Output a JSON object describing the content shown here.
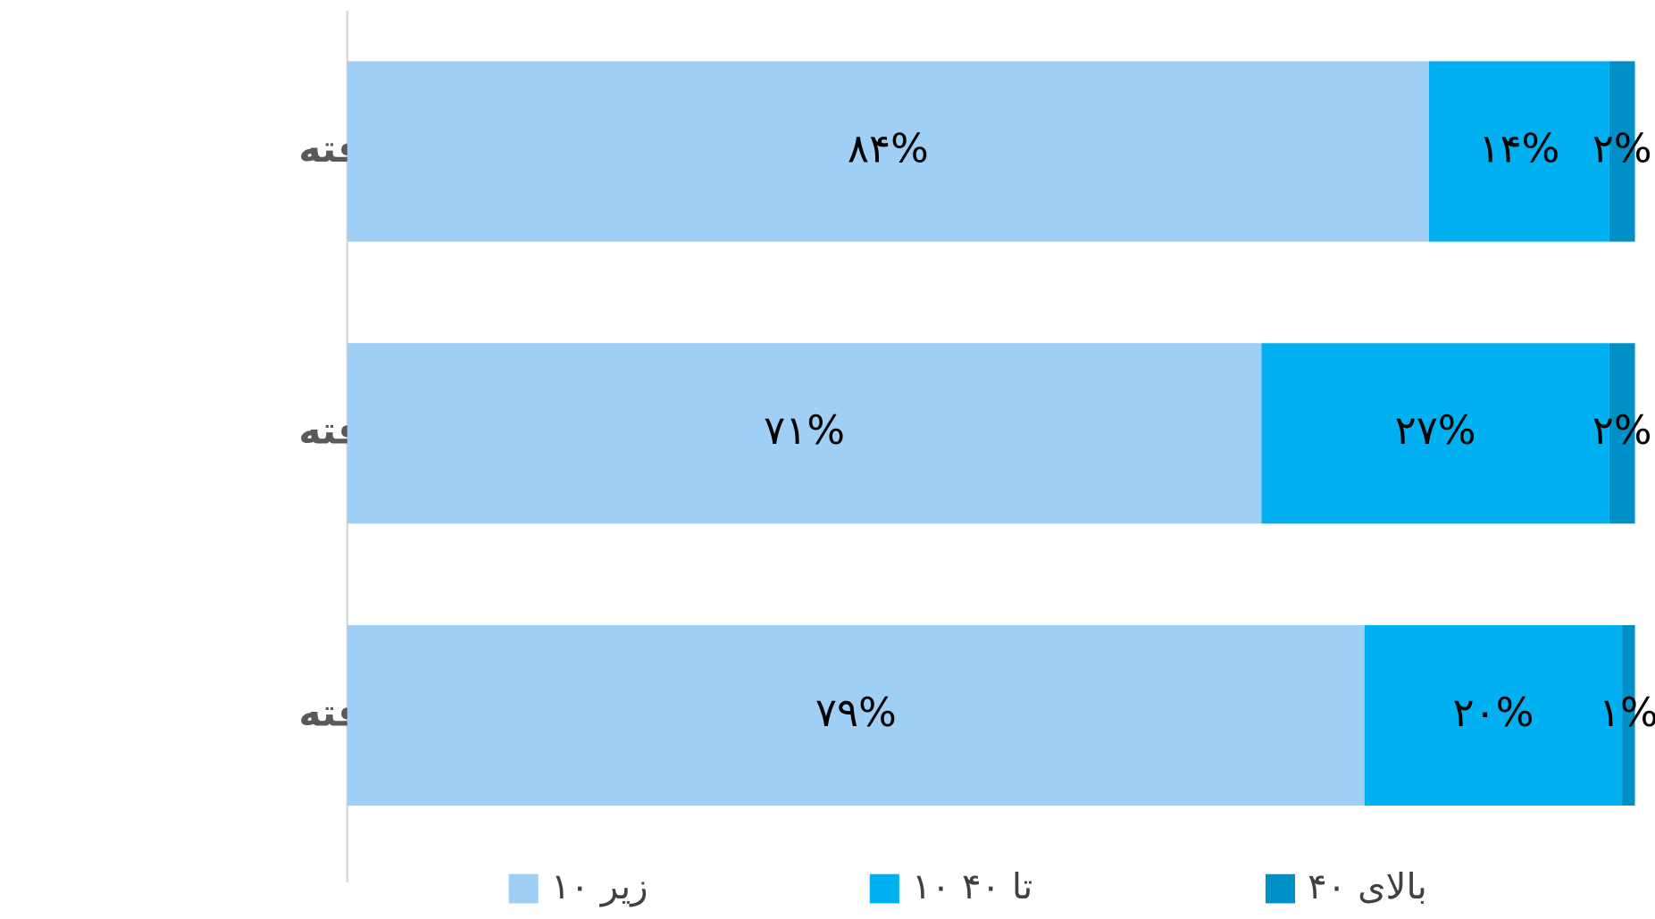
{
  "chart_data": {
    "type": "bar",
    "orientation": "horizontal",
    "stacked": true,
    "categories": [
      "به‌راحتی کاریافته",
      "به‌سختی کاریافته",
      "کارنیافته"
    ],
    "xlim": [
      0,
      100
    ],
    "series": [
      {
        "name": "زیر ۱۰",
        "color": "#a0cff5",
        "values": [
          84,
          71,
          79
        ],
        "value_labels": [
          "۸۴%",
          "۷۱%",
          "۷۹%"
        ]
      },
      {
        "name": "۱۰ تا ۴۰",
        "color": "#00b0f0",
        "values": [
          14,
          27,
          20
        ],
        "value_labels": [
          "۱۴%",
          "۲۷%",
          "۲۰%"
        ]
      },
      {
        "name": "بالای ۴۰",
        "color": "#0090c8",
        "values": [
          2,
          2,
          1
        ],
        "value_labels": [
          "۲%",
          "۲%",
          "۱%"
        ]
      }
    ],
    "legend": "bottom"
  }
}
